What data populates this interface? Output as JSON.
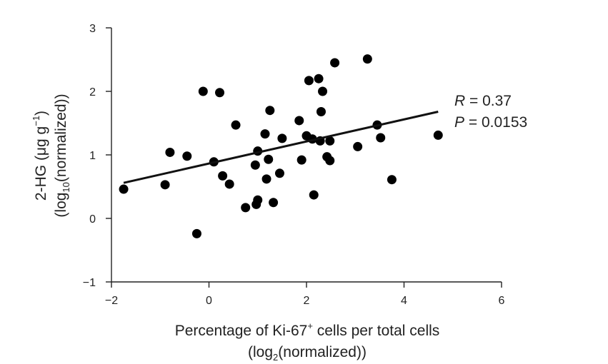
{
  "chart_data": {
    "type": "scatter",
    "xlabel": {
      "line1": {
        "before": "Percentage of Ki-67",
        "sup": "+",
        "after": " cells per total cells"
      },
      "line2": {
        "before": "(log",
        "sub": "2",
        "after": "(normalized))"
      }
    },
    "ylabel": {
      "line1": {
        "before": "2-HG (μg g",
        "sup": "−1",
        "after": ")"
      },
      "line2": {
        "before": "(log",
        "sub": "10",
        "after": "(normalized))"
      }
    },
    "xlim": [
      -2,
      6
    ],
    "ylim": [
      -1,
      3
    ],
    "xticks": [
      -2,
      0,
      2,
      4,
      6
    ],
    "xtick_labels": [
      "−2",
      "0",
      "2",
      "4",
      "6"
    ],
    "yticks": [
      -1,
      0,
      1,
      2,
      3
    ],
    "ytick_labels": [
      "−1",
      "0",
      "1",
      "2",
      "3"
    ],
    "grid": false,
    "annotation": {
      "r": {
        "label": "R",
        "text": " = 0.37"
      },
      "p": {
        "label": "P",
        "text": " = 0.0153"
      }
    },
    "fit_line": {
      "x": [
        -1.75,
        4.7
      ],
      "y": [
        0.56,
        1.68
      ]
    },
    "points": [
      {
        "x": -1.75,
        "y": 0.46
      },
      {
        "x": -0.9,
        "y": 0.53
      },
      {
        "x": -0.8,
        "y": 1.04
      },
      {
        "x": -0.45,
        "y": 0.98
      },
      {
        "x": -0.25,
        "y": -0.24
      },
      {
        "x": -0.12,
        "y": 2.0
      },
      {
        "x": 0.1,
        "y": 0.89
      },
      {
        "x": 0.22,
        "y": 1.98
      },
      {
        "x": 0.28,
        "y": 0.67
      },
      {
        "x": 0.42,
        "y": 0.54
      },
      {
        "x": 0.55,
        "y": 1.47
      },
      {
        "x": 0.75,
        "y": 0.17
      },
      {
        "x": 0.95,
        "y": 0.84
      },
      {
        "x": 0.97,
        "y": 0.22
      },
      {
        "x": 1.0,
        "y": 0.29
      },
      {
        "x": 1.0,
        "y": 1.06
      },
      {
        "x": 1.15,
        "y": 1.33
      },
      {
        "x": 1.18,
        "y": 0.62
      },
      {
        "x": 1.22,
        "y": 0.93
      },
      {
        "x": 1.25,
        "y": 1.7
      },
      {
        "x": 1.32,
        "y": 0.25
      },
      {
        "x": 1.45,
        "y": 0.71
      },
      {
        "x": 1.5,
        "y": 1.26
      },
      {
        "x": 1.85,
        "y": 1.54
      },
      {
        "x": 1.9,
        "y": 0.92
      },
      {
        "x": 2.0,
        "y": 1.3
      },
      {
        "x": 2.05,
        "y": 2.17
      },
      {
        "x": 2.12,
        "y": 1.25
      },
      {
        "x": 2.15,
        "y": 0.37
      },
      {
        "x": 2.25,
        "y": 2.2
      },
      {
        "x": 2.28,
        "y": 1.22
      },
      {
        "x": 2.3,
        "y": 1.68
      },
      {
        "x": 2.33,
        "y": 2.0
      },
      {
        "x": 2.42,
        "y": 0.97
      },
      {
        "x": 2.48,
        "y": 0.91
      },
      {
        "x": 2.48,
        "y": 1.22
      },
      {
        "x": 2.58,
        "y": 2.45
      },
      {
        "x": 3.05,
        "y": 1.13
      },
      {
        "x": 3.25,
        "y": 2.51
      },
      {
        "x": 3.45,
        "y": 1.47
      },
      {
        "x": 3.52,
        "y": 1.27
      },
      {
        "x": 3.75,
        "y": 0.61
      },
      {
        "x": 4.7,
        "y": 1.31
      }
    ]
  }
}
